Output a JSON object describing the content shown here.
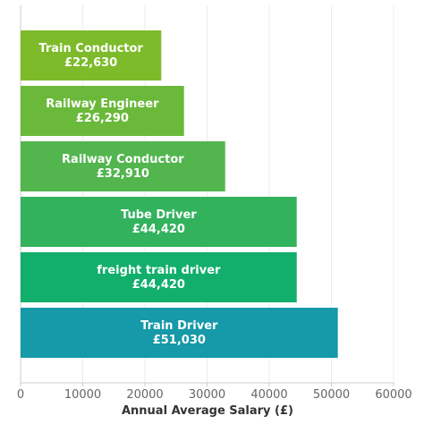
{
  "chart_data": {
    "type": "bar",
    "orientation": "horizontal",
    "categories": [
      "Train Conductor",
      "Railway Engineer",
      "Railway Conductor",
      "Tube Driver",
      "freight train driver",
      "Train Driver"
    ],
    "values": [
      22630,
      26290,
      32910,
      44420,
      44420,
      51030
    ],
    "value_labels": [
      "£22,630",
      "£26,290",
      "£32,910",
      "£44,420",
      "£44,420",
      "£51,030"
    ],
    "bar_colors": [
      "#7dbb2a",
      "#6ab93a",
      "#52b54e",
      "#33b25e",
      "#12ae6c",
      "#1699a8"
    ],
    "xlabel": "Annual Average Salary (£)",
    "xlim": [
      0,
      60000
    ],
    "xticks": [
      0,
      10000,
      20000,
      30000,
      40000,
      50000,
      60000
    ],
    "xtick_labels": [
      "0",
      "10000",
      "20000",
      "30000",
      "40000",
      "50000",
      "60000"
    ],
    "grid": true
  }
}
